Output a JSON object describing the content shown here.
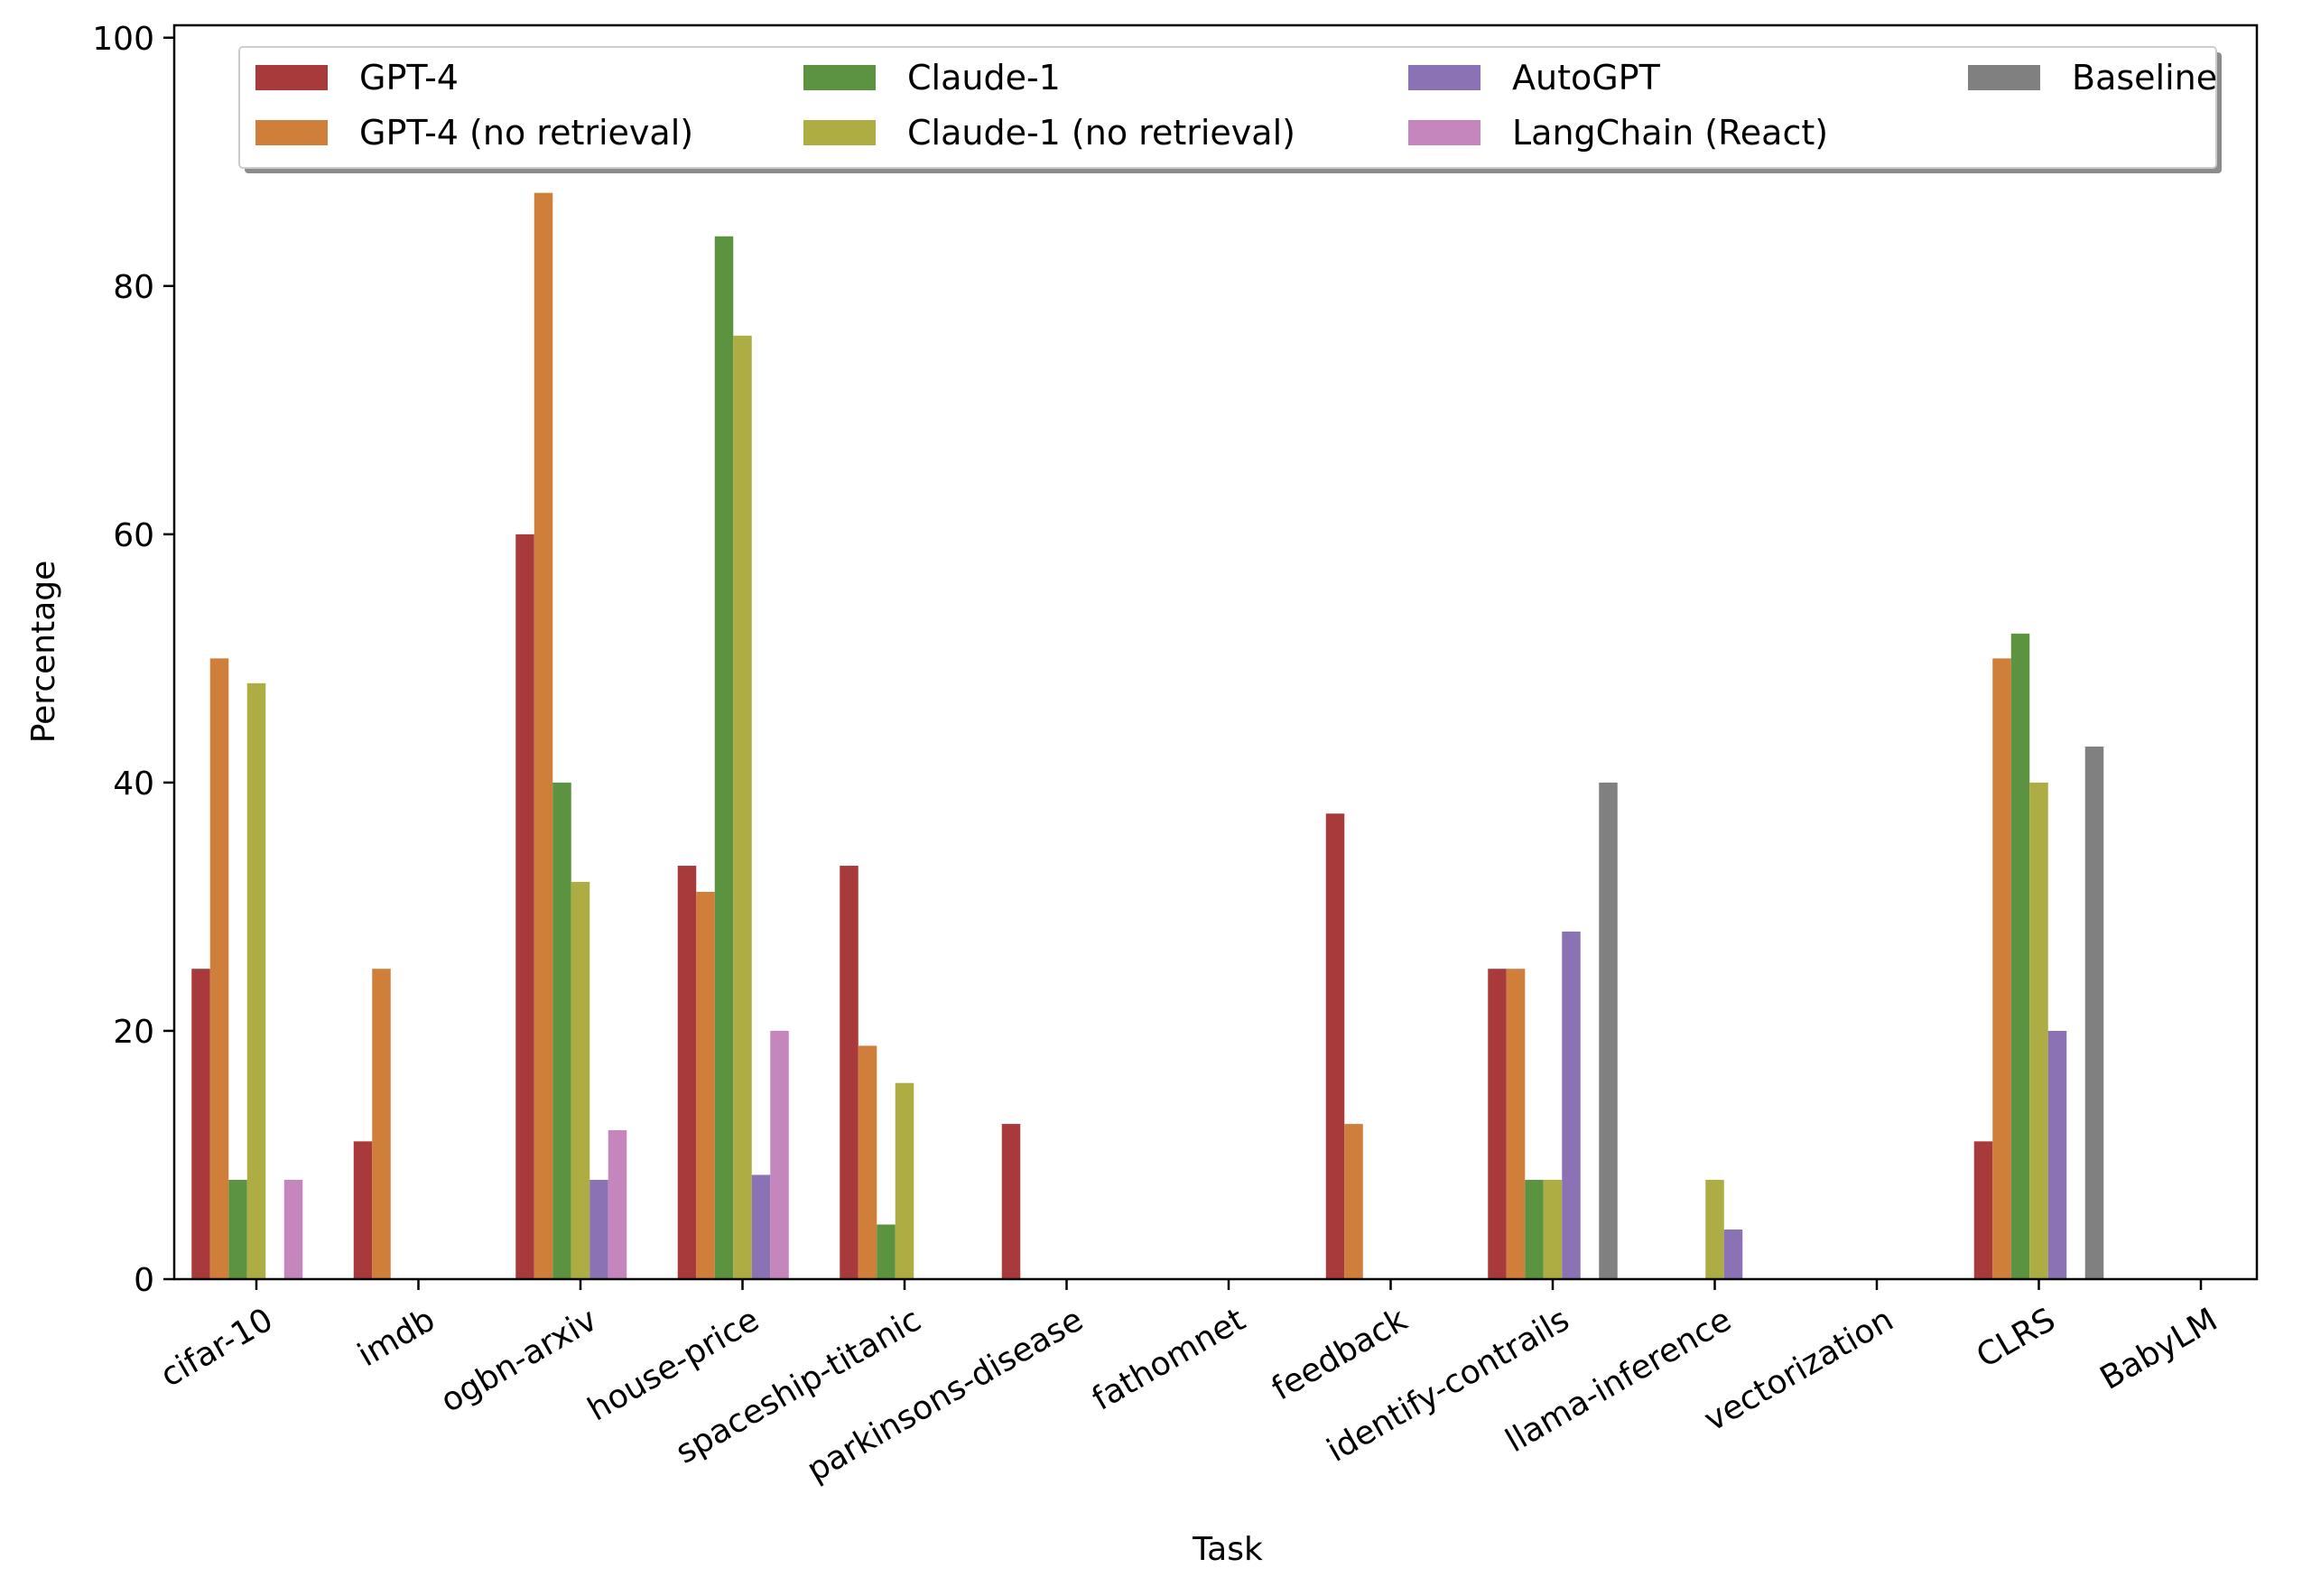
{
  "chart_data": {
    "type": "bar",
    "xlabel": "Task",
    "ylabel": "Percentage",
    "ylim": [
      0,
      101
    ],
    "yticks": [
      0,
      20,
      40,
      60,
      80,
      100
    ],
    "grid": false,
    "legend_position": "top",
    "categories": [
      "cifar-10",
      "imdb",
      "ogbn-arxiv",
      "house-price",
      "spaceship-titanic",
      "parkinsons-disease",
      "fathomnet",
      "feedback",
      "identify-contrails",
      "llama-inference",
      "vectorization",
      "CLRS",
      "BabyLM"
    ],
    "series": [
      {
        "name": "GPT-4",
        "color": "#a83a3c",
        "values": [
          25,
          11.1,
          60,
          33.3,
          33.3,
          12.5,
          0,
          37.5,
          25,
          0,
          0,
          11.1,
          0
        ]
      },
      {
        "name": "GPT-4 (no retrieval)",
        "color": "#cf7f39",
        "values": [
          50,
          25,
          87.5,
          31.2,
          18.8,
          0,
          0,
          12.5,
          25,
          0,
          0,
          50,
          0
        ]
      },
      {
        "name": "Claude-1",
        "color": "#5b9340",
        "values": [
          8,
          0,
          40,
          84,
          4.4,
          0,
          0,
          0,
          8,
          0,
          0,
          52,
          0
        ]
      },
      {
        "name": "Claude-1 (no retrieval)",
        "color": "#adad43",
        "values": [
          48,
          0,
          32,
          76,
          15.8,
          0,
          0,
          0,
          8,
          8,
          0,
          40,
          0
        ]
      },
      {
        "name": "AutoGPT",
        "color": "#8a72b4",
        "values": [
          0,
          0,
          8,
          8.4,
          0,
          0,
          0,
          0,
          28,
          4,
          0,
          20,
          0
        ]
      },
      {
        "name": "LangChain (React)",
        "color": "#c585bd",
        "values": [
          8,
          0,
          12,
          20,
          0,
          0,
          0,
          0,
          0,
          0,
          0,
          0,
          0
        ]
      },
      {
        "name": "Baseline",
        "color": "#808080",
        "values": [
          0,
          0,
          0,
          0,
          0,
          0,
          0,
          0,
          40,
          0,
          0,
          42.9,
          0
        ]
      }
    ]
  }
}
